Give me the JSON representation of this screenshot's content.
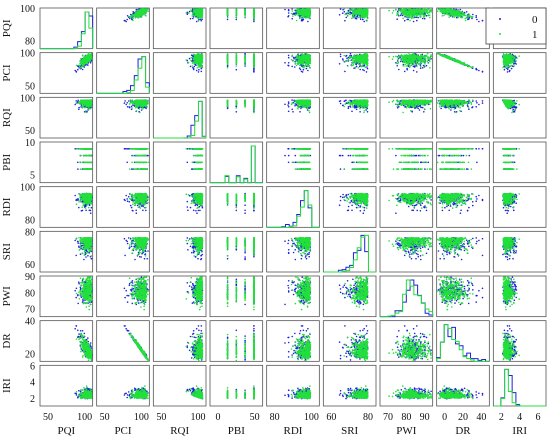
{
  "chart_data": {
    "type": "scatter",
    "subtype": "pair-plot matrix (scatter off-diagonal, step histograms on diagonal)",
    "title": "",
    "variables": [
      "PQI",
      "PCI",
      "RQI",
      "PBI",
      "RDI",
      "SRI",
      "PWI",
      "DR",
      "IRI"
    ],
    "series": [
      {
        "name": "0",
        "color": "#1f1fe0"
      },
      {
        "name": "1",
        "color": "#22e03a"
      }
    ],
    "legend": {
      "position": "top-right",
      "entries": [
        "0",
        "1"
      ]
    },
    "x_tick_labels": [
      [
        "50",
        "100"
      ],
      [
        "50",
        "100"
      ],
      [
        "50",
        "100"
      ],
      [
        "0",
        "50"
      ],
      [
        "80",
        "100"
      ],
      [
        "60",
        "80"
      ],
      [
        "70",
        "80",
        "90"
      ],
      [
        "0",
        "20",
        "40"
      ],
      [
        "2",
        "4",
        "6"
      ]
    ],
    "y_tick_labels": [
      [
        "80",
        "100"
      ],
      [
        "50",
        "100"
      ],
      [
        "50",
        "100"
      ],
      [
        "5",
        "10"
      ],
      [
        "80",
        "100"
      ],
      [
        "60",
        "80"
      ],
      [
        "70",
        "80",
        "90"
      ],
      [
        "20",
        "40"
      ],
      [
        "2",
        "4",
        "6"
      ]
    ],
    "ranges": {
      "PQI": [
        20,
        102
      ],
      "PCI": [
        0,
        102
      ],
      "RQI": [
        0,
        102
      ],
      "PBI": [
        0,
        12
      ],
      "RDI": [
        55,
        102
      ],
      "SRI": [
        45,
        102
      ],
      "PWI": [
        62,
        96
      ],
      "DR": [
        0,
        55
      ],
      "IRI": [
        0,
        7.5
      ]
    },
    "typical_values": {
      "PQI": 88,
      "PCI": 90,
      "RQI": 85,
      "PBI": 10,
      "RDI": 92,
      "SRI": 90,
      "PWI": 82,
      "DR": 5,
      "IRI": 1.8
    },
    "spread": {
      "PQI": 7,
      "PCI": 10,
      "RQI": 10,
      "PBI": 1.5,
      "RDI": 5,
      "SRI": 7,
      "PWI": 5,
      "DR": 5,
      "IRI": 0.8
    },
    "grid": false
  }
}
